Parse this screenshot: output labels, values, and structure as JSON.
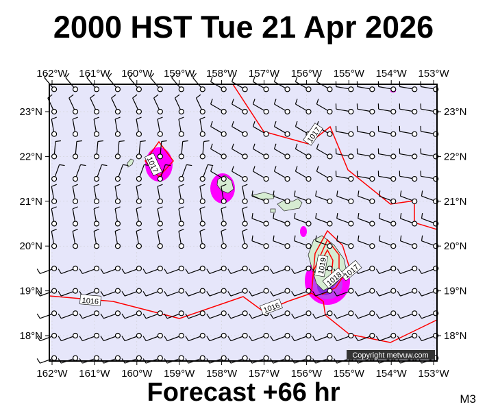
{
  "title": "2000 HST Tue 21 Apr 2026",
  "footer": "Forecast +66 hr",
  "model_code": "M3",
  "copyright": "Copyright metvuw.com",
  "longitude_labels": [
    "162°W",
    "161°W",
    "160°W",
    "159°W",
    "158°W",
    "157°W",
    "156°W",
    "155°W",
    "154°W",
    "153°W"
  ],
  "latitude_labels": [
    "23°N",
    "22°N",
    "21°N",
    "20°N",
    "19°N",
    "18°N"
  ],
  "isobar_labels": [
    "1016",
    "1016",
    "1017",
    "1017",
    "1017",
    "1018",
    "1019"
  ],
  "colors": {
    "ocean": "#e6e6fa",
    "land": "#d6ecd2",
    "isobar": "#ff0000",
    "rain_light": "#ff00ff",
    "rain_heavy": "#8a2be2"
  }
}
